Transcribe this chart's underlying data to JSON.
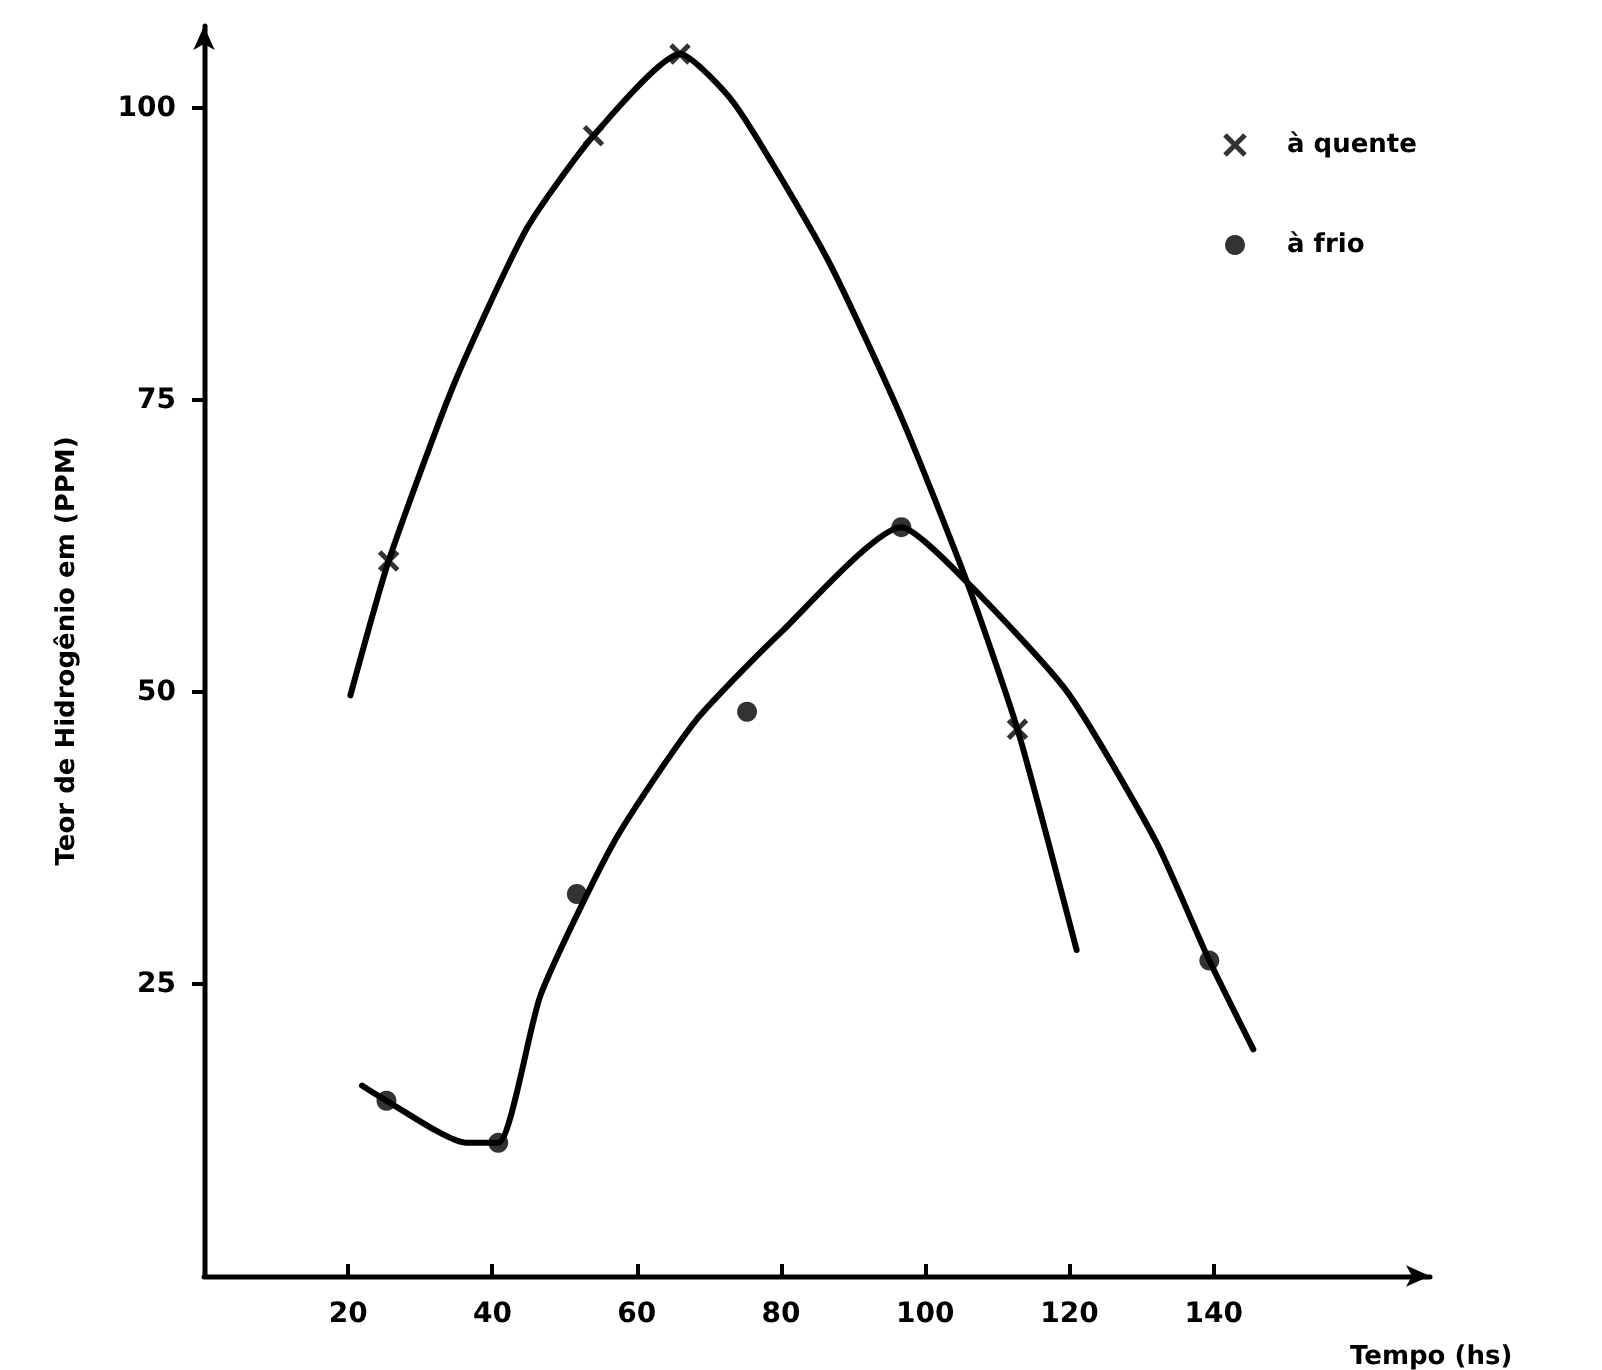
{
  "chart_data": {
    "type": "scatter",
    "xlabel": "Tempo (hs)",
    "ylabel": "Teor de Hidrogênio em (PPM)",
    "xlim": [
      0,
      170
    ],
    "xticks": [
      20,
      40,
      60,
      80,
      100,
      120,
      140
    ],
    "ylim": [
      0,
      107
    ],
    "yticks": [
      25,
      50,
      75,
      100
    ],
    "grid": false,
    "legend": "top right",
    "series": [
      {
        "name": "à quente",
        "marker": "cross",
        "color": "#000000",
        "x": [
          25.6,
          54,
          66,
          112.8
        ],
        "values": [
          61.2,
          97.6,
          104.6,
          46.8
        ]
      },
      {
        "name": "à frio",
        "marker": "circle",
        "color": "#000000",
        "x": [
          25.3,
          40.8,
          51.7,
          75.3,
          96.7,
          139.4
        ],
        "values": [
          15,
          11.4,
          32.7,
          48.3,
          64.1,
          27
        ]
      },
      {
        "type": "line",
        "marker": "none",
        "line_style": "solid",
        "color": "#000000",
        "x": [
          20.3,
          25.6,
          34.7,
          44.7,
          54,
          66,
          73.6,
          86.4,
          96.7,
          105.8,
          112.8,
          121
        ],
        "values": [
          49.7,
          61.2,
          76.4,
          89.6,
          97.6,
          104.6,
          100.3,
          87.1,
          73.5,
          59.4,
          46.8,
          27.9
        ]
      },
      {
        "type": "line",
        "marker": "none",
        "line_style": "solid",
        "color": "#000000",
        "x": [
          21.9,
          25.3,
          36.4,
          40.8,
          46.7,
          56.9,
          68,
          80,
          96.7,
          105.8,
          119.7,
          132,
          139.4,
          145.5
        ],
        "values": [
          16.3,
          15,
          11.4,
          11.4,
          24.1,
          37.2,
          47.4,
          55.1,
          64.1,
          59.4,
          50,
          37.2,
          27,
          19.4
        ]
      }
    ]
  }
}
